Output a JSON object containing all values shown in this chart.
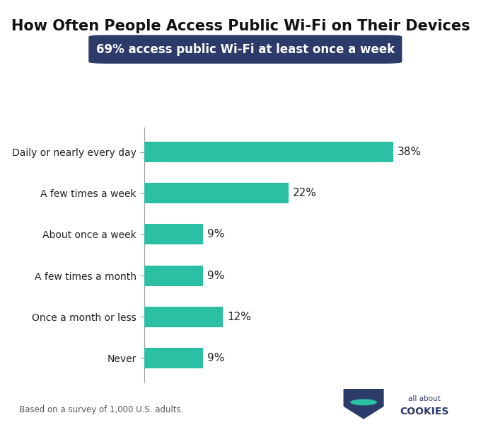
{
  "title": "How Often People Access Public Wi-Fi on Their Devices",
  "subtitle": "69% access public Wi-Fi at least once a week",
  "subtitle_bg_color": "#2d3b6b",
  "subtitle_text_color": "#ffffff",
  "categories": [
    "Daily or nearly every day",
    "A few times a week",
    "About once a week",
    "A few times a month",
    "Once a month or less",
    "Never"
  ],
  "values": [
    38,
    22,
    9,
    9,
    12,
    9
  ],
  "bar_color": "#2bbfa4",
  "label_color": "#222222",
  "value_color": "#222222",
  "footnote": "Based on a survey of 1,000 U.S. adults.",
  "background_color": "#ffffff",
  "title_fontsize": 15,
  "subtitle_fontsize": 12,
  "bar_label_fontsize": 11,
  "category_fontsize": 10,
  "footnote_fontsize": 8.5,
  "xlim": [
    0,
    44
  ]
}
